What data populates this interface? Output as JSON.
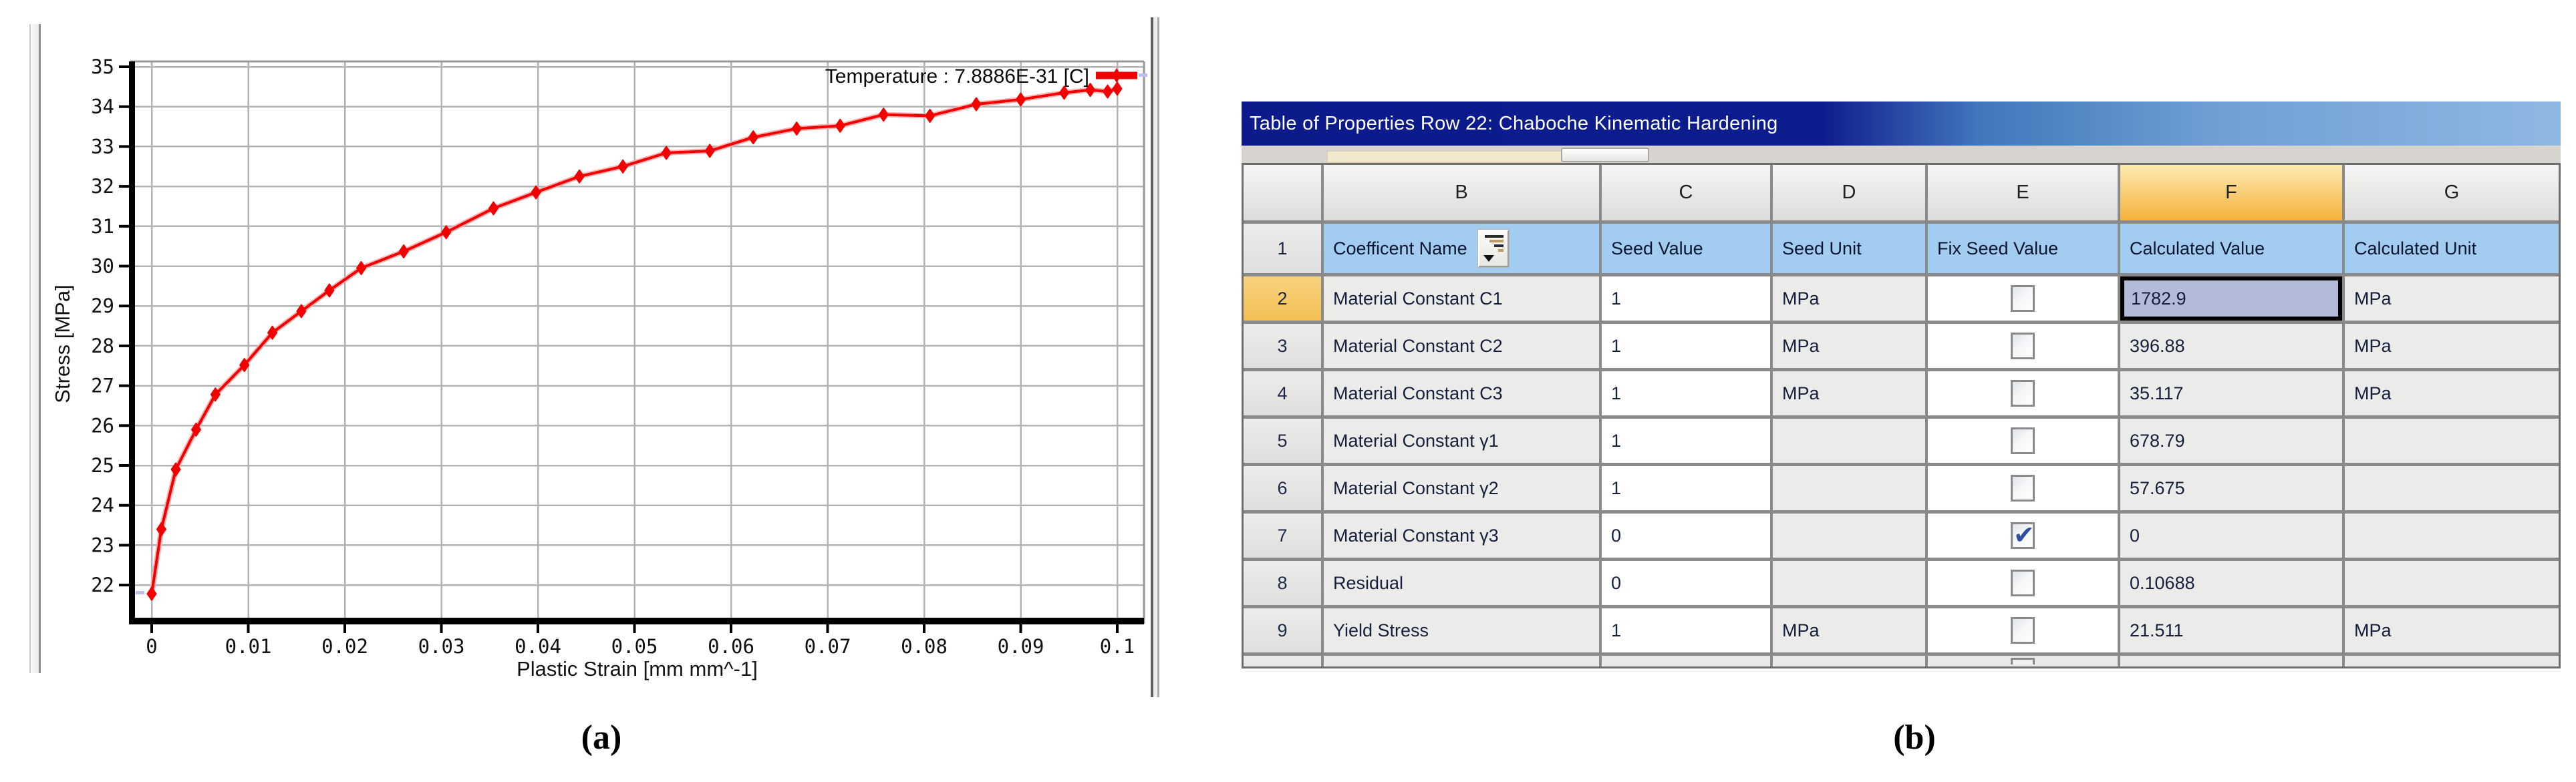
{
  "figure": {
    "panel_a_label": "(a)",
    "panel_b_label": "(b)"
  },
  "chart_data": {
    "type": "line",
    "title": "",
    "xlabel": "Plastic Strain  [mm mm^-1]",
    "ylabel": "Stress  [MPa]",
    "legend_position": "top-right",
    "grid": true,
    "xlim": [
      -0.0022,
      0.1028
    ],
    "ylim": [
      21.2,
      35.13
    ],
    "x_ticks": [
      0,
      0.01,
      0.02,
      0.03,
      0.04,
      0.05,
      0.06,
      0.07,
      0.08,
      0.09,
      0.1
    ],
    "x_tick_labels": [
      "0",
      "0.01",
      "0.02",
      "0.03",
      "0.04",
      "0.05",
      "0.06",
      "0.07",
      "0.08",
      "0.09",
      "0.1"
    ],
    "y_ticks": [
      22,
      23,
      24,
      25,
      26,
      27,
      28,
      29,
      30,
      31,
      32,
      33,
      34,
      35
    ],
    "series": [
      {
        "name": "Temperature : 7.8886E-31 [C]",
        "color": "#f20000",
        "marker": "diamond",
        "points": [
          [
            0.0,
            21.78
          ],
          [
            0.001,
            23.4
          ],
          [
            0.0025,
            24.9
          ],
          [
            0.0046,
            25.9
          ],
          [
            0.0066,
            26.78
          ],
          [
            0.0096,
            27.52
          ],
          [
            0.0125,
            28.33
          ],
          [
            0.0155,
            28.87
          ],
          [
            0.0184,
            29.39
          ],
          [
            0.0217,
            29.95
          ],
          [
            0.0261,
            30.37
          ],
          [
            0.0305,
            30.85
          ],
          [
            0.0354,
            31.45
          ],
          [
            0.0398,
            31.85
          ],
          [
            0.0443,
            32.25
          ],
          [
            0.0488,
            32.5
          ],
          [
            0.0533,
            32.84
          ],
          [
            0.0578,
            32.89
          ],
          [
            0.0623,
            33.23
          ],
          [
            0.0668,
            33.45
          ],
          [
            0.0713,
            33.52
          ],
          [
            0.0758,
            33.8
          ],
          [
            0.0806,
            33.77
          ],
          [
            0.0854,
            34.06
          ],
          [
            0.09,
            34.18
          ],
          [
            0.0945,
            34.35
          ],
          [
            0.0972,
            34.42
          ],
          [
            0.099,
            34.38
          ],
          [
            0.1,
            34.45
          ]
        ]
      }
    ]
  },
  "table": {
    "title": "Table of Properties Row 22: Chaboche Kinematic Hardening",
    "column_letters": [
      "",
      "B",
      "C",
      "D",
      "E",
      "F",
      "G"
    ],
    "highlighted_column": "F",
    "header_row": {
      "num": "1",
      "cells": [
        "Coefficent Name",
        "Seed Value",
        "Seed Unit",
        "Fix Seed Value",
        "Calculated Value",
        "Calculated Unit"
      ]
    },
    "sort_icon": "sort-button",
    "rows": [
      {
        "num": "2",
        "name": "Material Constant C1",
        "seed_value": "1",
        "seed_unit": "MPa",
        "fix_seed": false,
        "calculated_value": "1782.9",
        "calculated_unit": "MPa",
        "selected": true
      },
      {
        "num": "3",
        "name": "Material Constant C2",
        "seed_value": "1",
        "seed_unit": "MPa",
        "fix_seed": false,
        "calculated_value": "396.88",
        "calculated_unit": "MPa",
        "selected": false
      },
      {
        "num": "4",
        "name": "Material Constant C3",
        "seed_value": "1",
        "seed_unit": "MPa",
        "fix_seed": false,
        "calculated_value": "35.117",
        "calculated_unit": "MPa",
        "selected": false
      },
      {
        "num": "5",
        "name": "Material Constant γ1",
        "seed_value": "1",
        "seed_unit": "",
        "fix_seed": false,
        "calculated_value": "678.79",
        "calculated_unit": "",
        "selected": false
      },
      {
        "num": "6",
        "name": "Material Constant γ2",
        "seed_value": "1",
        "seed_unit": "",
        "fix_seed": false,
        "calculated_value": "57.675",
        "calculated_unit": "",
        "selected": false
      },
      {
        "num": "7",
        "name": "Material Constant γ3",
        "seed_value": "0",
        "seed_unit": "",
        "fix_seed": true,
        "calculated_value": "0",
        "calculated_unit": "",
        "selected": false
      },
      {
        "num": "8",
        "name": "Residual",
        "seed_value": "0",
        "seed_unit": "",
        "fix_seed": false,
        "calculated_value": "0.10688",
        "calculated_unit": "",
        "selected": false
      },
      {
        "num": "9",
        "name": "Yield Stress",
        "seed_value": "1",
        "seed_unit": "MPa",
        "fix_seed": false,
        "calculated_value": "21.511",
        "calculated_unit": "MPa",
        "selected": false
      }
    ]
  },
  "colors": {
    "curve_red": "#f20000",
    "curve_halo": "#ffb0b0",
    "gridline": "#b3b3b3",
    "axis_black": "#000000",
    "selected_cell_bg": "#b2bbd8",
    "selected_rownum_bg": "#f3c055",
    "header_blue": "#a3cdf0",
    "column_highlight": "#f5b23a",
    "titlebar_navy": "#0c1a8a",
    "titlebar_light": "#8fb8e2",
    "checkmark_blue": "#31509c",
    "marker_accent": "#b9c0ee"
  }
}
